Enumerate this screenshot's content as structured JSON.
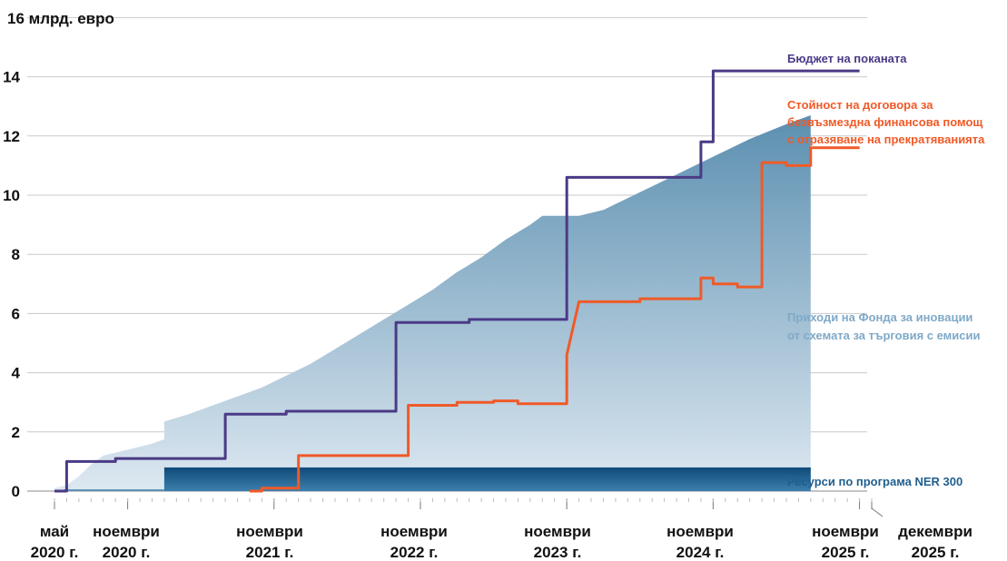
{
  "chart_data": {
    "type": "line",
    "unit_label": "16 млрд. евро",
    "ylim": [
      0,
      16
    ],
    "y_ticks": [
      0,
      2,
      4,
      6,
      8,
      10,
      12,
      14
    ],
    "x_start": "2020-05",
    "x_end": "2025-12",
    "x_ticks": [
      {
        "date": "2020-05",
        "lines": [
          "май",
          "2020 г."
        ]
      },
      {
        "date": "2020-11",
        "lines": [
          "ноември",
          "2020 г."
        ]
      },
      {
        "date": "2021-11",
        "lines": [
          "ноември",
          "2021 г."
        ]
      },
      {
        "date": "2022-11",
        "lines": [
          "ноември",
          "2022 г."
        ]
      },
      {
        "date": "2023-11",
        "lines": [
          "ноември",
          "2023 г."
        ]
      },
      {
        "date": "2024-11",
        "lines": [
          "ноември",
          "2024 г."
        ]
      },
      {
        "date": "2025-11",
        "lines": [
          "ноември",
          "2025 г."
        ]
      },
      {
        "date": "2025-12",
        "lines": [
          "декември",
          "2025 г."
        ]
      }
    ],
    "grid": true,
    "series": [
      {
        "name": "Приходи на Фонда за иновации от схемата за търговия с емисии",
        "label_lines": [
          "Приходи на Фонда за иновации",
          "от схемата за търговия с емисии"
        ],
        "kind": "area",
        "color_top": "#5b8fb0",
        "color_bottom": "#dde8f1",
        "points": [
          [
            "2020-05",
            0.1
          ],
          [
            "2020-06",
            0.2
          ],
          [
            "2020-07",
            0.5
          ],
          [
            "2020-08",
            0.9
          ],
          [
            "2020-09",
            1.2
          ],
          [
            "2020-10",
            1.3
          ],
          [
            "2020-11",
            1.4
          ],
          [
            "2020-12",
            1.5
          ],
          [
            "2021-01",
            1.6
          ],
          [
            "2021-02",
            1.75
          ],
          [
            "2021-02",
            2.35
          ],
          [
            "2021-04",
            2.6
          ],
          [
            "2021-06",
            2.9
          ],
          [
            "2021-08",
            3.2
          ],
          [
            "2021-10",
            3.5
          ],
          [
            "2021-12",
            3.9
          ],
          [
            "2022-02",
            4.3
          ],
          [
            "2022-04",
            4.8
          ],
          [
            "2022-06",
            5.3
          ],
          [
            "2022-08",
            5.8
          ],
          [
            "2022-10",
            6.3
          ],
          [
            "2022-12",
            6.8
          ],
          [
            "2023-02",
            7.4
          ],
          [
            "2023-04",
            7.9
          ],
          [
            "2023-06",
            8.5
          ],
          [
            "2023-08",
            9.0
          ],
          [
            "2023-09",
            9.3
          ],
          [
            "2023-12",
            9.3
          ],
          [
            "2024-02",
            9.5
          ],
          [
            "2024-05",
            10.1
          ],
          [
            "2024-08",
            10.7
          ],
          [
            "2024-11",
            11.3
          ],
          [
            "2025-02",
            11.9
          ],
          [
            "2025-05",
            12.4
          ],
          [
            "2025-07",
            12.7
          ]
        ]
      },
      {
        "name": "Ресурси по програма NER 300",
        "label_lines": [
          "Ресурси по програма NER 300"
        ],
        "kind": "band",
        "color": "#1f5f8e",
        "start": "2021-02",
        "end": "2025-07",
        "value": 0.8
      },
      {
        "name": "Бюджет на поканата",
        "label_lines": [
          "Бюджет на поканата"
        ],
        "kind": "step",
        "color": "#4b3a86",
        "points": [
          [
            "2020-05",
            0.0
          ],
          [
            "2020-06",
            0.0
          ],
          [
            "2020-06",
            1.0
          ],
          [
            "2020-10",
            1.0
          ],
          [
            "2020-10",
            1.1
          ],
          [
            "2021-07",
            1.1
          ],
          [
            "2021-07",
            2.6
          ],
          [
            "2021-12",
            2.6
          ],
          [
            "2021-12",
            2.7
          ],
          [
            "2022-09",
            2.7
          ],
          [
            "2022-09",
            5.7
          ],
          [
            "2023-03",
            5.7
          ],
          [
            "2023-03",
            5.8
          ],
          [
            "2023-11",
            5.8
          ],
          [
            "2023-11",
            10.6
          ],
          [
            "2024-10",
            10.6
          ],
          [
            "2024-10",
            11.8
          ],
          [
            "2024-11",
            11.8
          ],
          [
            "2024-11",
            14.2
          ],
          [
            "2025-11",
            14.2
          ]
        ]
      },
      {
        "name": "Стойност на договора за безвъзмездна финансова помощ с отразяване на прекратяванията",
        "label_lines": [
          "Стойност на договора за",
          "безвъзмездна финансова помощ",
          "с отразяване на прекратяванията"
        ],
        "kind": "step",
        "color": "#f05a28",
        "points": [
          [
            "2021-09",
            0.0
          ],
          [
            "2021-10",
            0.0
          ],
          [
            "2021-10",
            0.1
          ],
          [
            "2022-01",
            0.1
          ],
          [
            "2022-01",
            1.2
          ],
          [
            "2022-10",
            1.2
          ],
          [
            "2022-10",
            2.9
          ],
          [
            "2023-02",
            2.9
          ],
          [
            "2023-02",
            3.0
          ],
          [
            "2023-05",
            3.0
          ],
          [
            "2023-05",
            3.05
          ],
          [
            "2023-07",
            3.05
          ],
          [
            "2023-07",
            2.95
          ],
          [
            "2023-11",
            2.95
          ],
          [
            "2023-11",
            4.6
          ],
          [
            "2023-12",
            6.4
          ],
          [
            "2024-05",
            6.4
          ],
          [
            "2024-05",
            6.5
          ],
          [
            "2024-10",
            6.5
          ],
          [
            "2024-10",
            7.2
          ],
          [
            "2024-11",
            7.2
          ],
          [
            "2024-11",
            7.0
          ],
          [
            "2025-01",
            7.0
          ],
          [
            "2025-01",
            6.9
          ],
          [
            "2025-03",
            6.9
          ],
          [
            "2025-03",
            8.0
          ],
          [
            "2025-03",
            11.1
          ],
          [
            "2025-05",
            11.1
          ],
          [
            "2025-05",
            11.0
          ],
          [
            "2025-07",
            11.0
          ],
          [
            "2025-07",
            11.6
          ],
          [
            "2025-11",
            11.6
          ]
        ]
      }
    ]
  }
}
